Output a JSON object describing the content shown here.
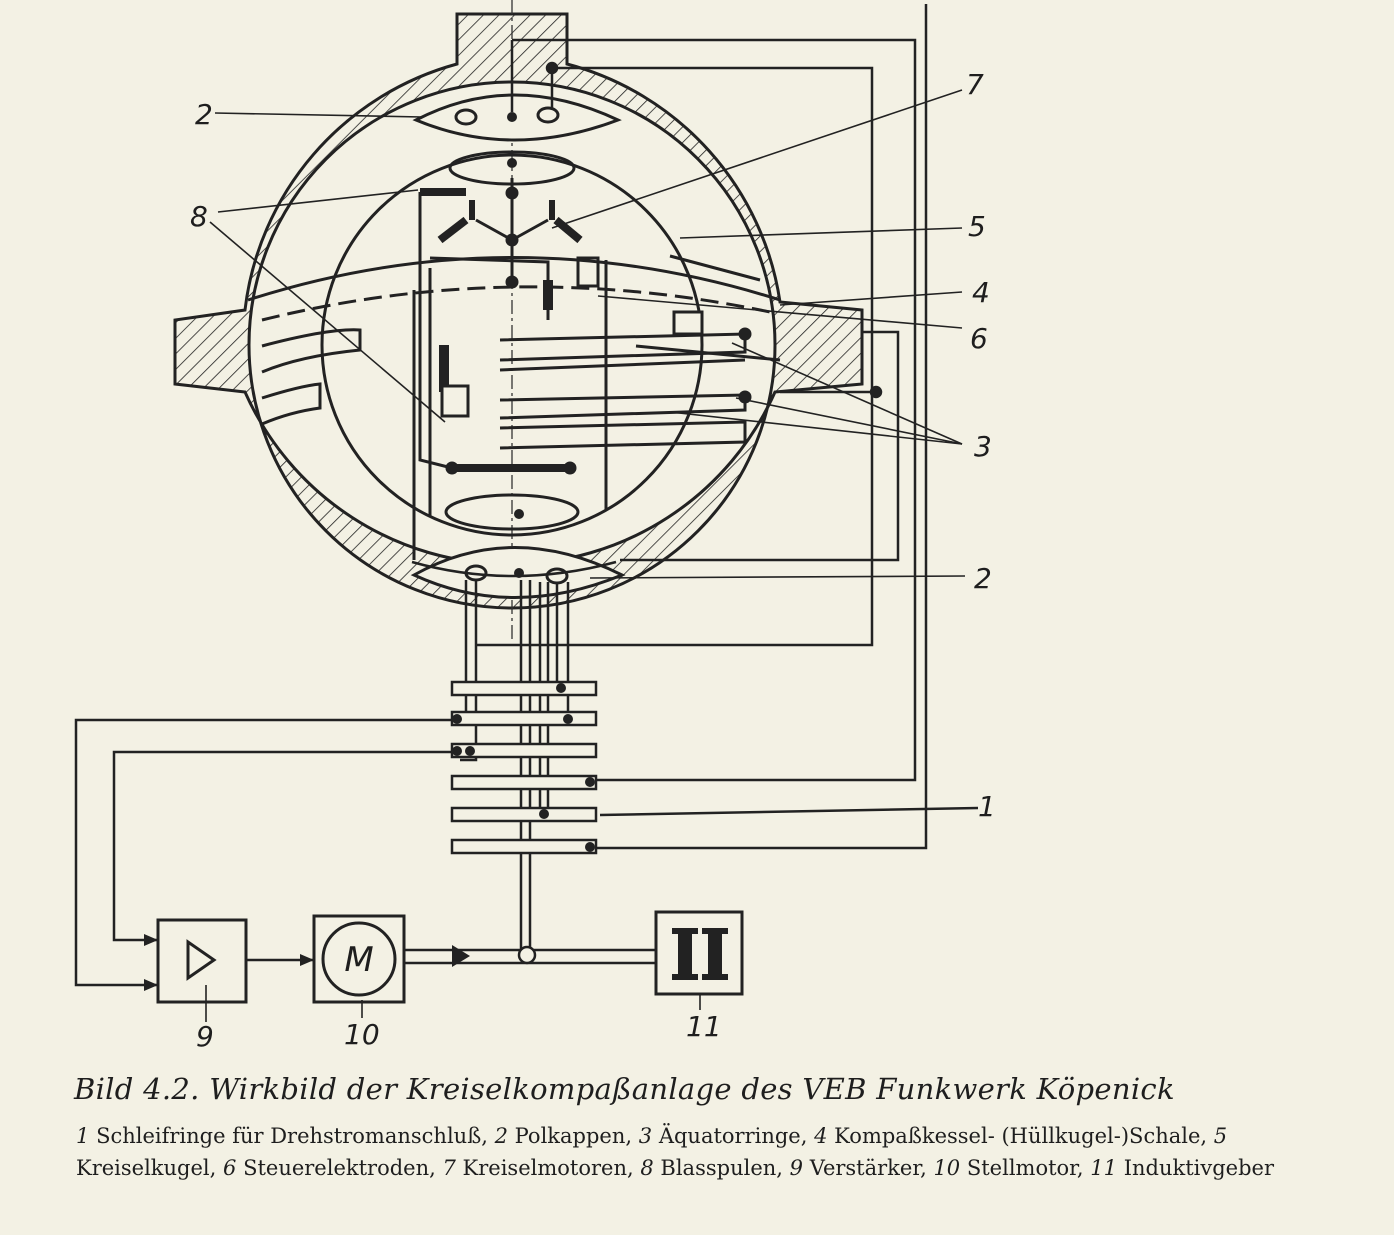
{
  "figure": {
    "callouts": {
      "pole_cap_top": "2",
      "gyro_motors": "7",
      "blowing_coils": "8",
      "gyro_sphere": "5",
      "vessel_shell": "4",
      "control_electrodes": "6",
      "equator_rings": "3",
      "pole_cap_bottom": "2",
      "slip_rings": "1",
      "amplifier": "9",
      "servo_motor": "10",
      "inductive_sensor": "11"
    },
    "motor_symbol": "M"
  },
  "caption": {
    "title": "Bild 4.2. Wirkbild der Kreiselkompaßanlage des VEB Funkwerk Köpenick",
    "legend": [
      {
        "num": "1",
        "text": "Schleifringe für Drehstromanschluß,"
      },
      {
        "num": "2",
        "text": "Polkappen,"
      },
      {
        "num": "3",
        "text": "Äquatorringe,"
      },
      {
        "num": "4",
        "text": "Kompaßkessel- (Hüllkugel-)Schale,"
      },
      {
        "num": "5",
        "text": "Kreiselkugel,"
      },
      {
        "num": "6",
        "text": "Steuerelektroden,"
      },
      {
        "num": "7",
        "text": "Kreiselmotoren,"
      },
      {
        "num": "8",
        "text": "Blasspulen,"
      },
      {
        "num": "9",
        "text": "Verstärker,"
      },
      {
        "num": "10",
        "text": "Stellmotor,"
      },
      {
        "num": "11",
        "text": "Induktivgeber"
      }
    ]
  }
}
